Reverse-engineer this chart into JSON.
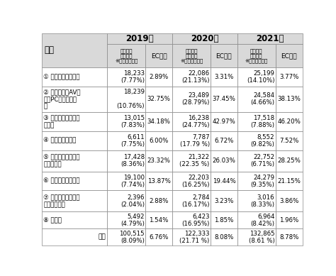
{
  "years": [
    "2019年",
    "2020年",
    "2021年"
  ],
  "header_cat": "分類",
  "sub_headers": [
    "市場規模\n（億円）\n※下段：前年比",
    "EC化率",
    "市場規模\n（億円）\n※下段：前年比",
    "EC化率",
    "市場規模\n（億円）\n※下段：前年比",
    "EC化率"
  ],
  "rows": [
    {
      "num": "①",
      "name": "食品、飲料、酒類",
      "vals": [
        "18,233\n(7.77%)",
        "2.89%",
        "22,086\n(21.13%)",
        "3.31%",
        "25,199\n(14.10%)",
        "3.77%"
      ],
      "tall": false
    },
    {
      "num": "②",
      "name": "生活家電、AV機\n器、PC・周辺機器\n等",
      "vals": [
        "18,239\n\n(10.76%)",
        "32.75%",
        "23,489\n(28.79%)",
        "37.45%",
        "24,584\n(4.66%)",
        "38.13%"
      ],
      "tall": true
    },
    {
      "num": "③",
      "name": "書籍、映像・音楽\nソフト",
      "vals": [
        "13,015\n(7.83%)",
        "34.18%",
        "16,238\n(24.77%)",
        "42.97%",
        "17,518\n(7.88%)",
        "46.20%"
      ],
      "tall": false
    },
    {
      "num": "④",
      "name": "化粧品、医薬品",
      "vals": [
        "6,611\n(7.75%)",
        "6.00%",
        "7,787\n(17.79 %)",
        "6.72%",
        "8,552\n(9.82%)",
        "7.52%"
      ],
      "tall": false
    },
    {
      "num": "⑤",
      "name": "生活雑貨、家具、\nインテリア",
      "vals": [
        "17,428\n(8.36%)",
        "23.32%",
        "21,322\n(22.35 %)",
        "26.03%",
        "22,752\n(6.71%)",
        "28.25%"
      ],
      "tall": false
    },
    {
      "num": "⑥",
      "name": "衣類・服装雑貨等",
      "vals": [
        "19,100\n(7.74%)",
        "13.87%",
        "22,203\n(16.25%)",
        "19.44%",
        "24,279\n(9.35%)",
        "21.15%"
      ],
      "tall": false
    },
    {
      "num": "⑦",
      "name": "自動車、自動二輪\n車、パーツ等",
      "vals": [
        "2,396\n(2.04%)",
        "2.88%",
        "2,784\n(16.17%)",
        "3.23%",
        "3,016\n(8.33%)",
        "3.86%"
      ],
      "tall": false
    },
    {
      "num": "⑧",
      "name": "その他",
      "vals": [
        "5,492\n(4.79%)",
        "1.54%",
        "6,423\n(16.95%)",
        "1.85%",
        "6,964\n(8.42%)",
        "1.96%"
      ],
      "tall": false
    }
  ],
  "footer": {
    "label": "合計",
    "vals": [
      "100,515\n(8.09%)",
      "6.76%",
      "122,333\n(21.71 %)",
      "8.08%",
      "132,865\n(8.61 %)",
      "8.78%"
    ]
  },
  "bg_header": "#d9d9d9",
  "bg_white": "#ffffff",
  "border_color": "#888888",
  "text_color": "#000000"
}
